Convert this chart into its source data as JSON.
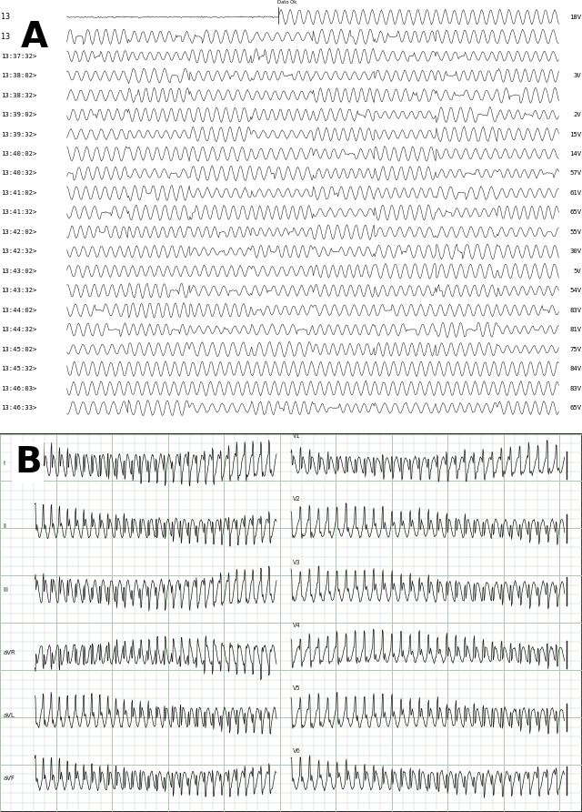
{
  "panel_A": {
    "bg_color": "#ffffff",
    "label": "A",
    "label_fontsize": 28,
    "rows": [
      {
        "time": "13",
        "suffix": "",
        "value": "18V",
        "type": "flat_then_vt"
      },
      {
        "time": "13",
        "suffix": "",
        "value": "",
        "type": "vt_mixed"
      },
      {
        "time": "13:37:32",
        "suffix": ">",
        "value": "",
        "type": "vt_mixed"
      },
      {
        "time": "13:38:02",
        "suffix": ">",
        "value": "3V",
        "type": "vt_mixed"
      },
      {
        "time": "13:38:32",
        "suffix": ">",
        "value": "",
        "type": "vt_mixed"
      },
      {
        "time": "13:39:02",
        "suffix": ">",
        "value": "2V",
        "type": "vt_mixed"
      },
      {
        "time": "13:39:32",
        "suffix": ">",
        "value": "15V",
        "type": "vt_mixed"
      },
      {
        "time": "13:40:02",
        "suffix": ">",
        "value": "14V",
        "type": "vt_mixed"
      },
      {
        "time": "13:40:32",
        "suffix": ">",
        "value": "57V",
        "type": "vt_mixed"
      },
      {
        "time": "13:41:02",
        "suffix": ">",
        "value": "61V",
        "type": "vt_mixed"
      },
      {
        "time": "13:41:32",
        "suffix": ">",
        "value": "65V",
        "type": "vt_mixed"
      },
      {
        "time": "13:42:02",
        "suffix": ">",
        "value": "55V",
        "type": "vt_mixed"
      },
      {
        "time": "13:42:32",
        "suffix": ">",
        "value": "30V",
        "type": "vt_mixed"
      },
      {
        "time": "13:43:02",
        "suffix": ">",
        "value": "5V",
        "type": "vt_mixed"
      },
      {
        "time": "13:43:32",
        "suffix": ">",
        "value": "54V",
        "type": "vt_mixed"
      },
      {
        "time": "13:44:02",
        "suffix": ">",
        "value": "83V",
        "type": "vt_mixed"
      },
      {
        "time": "13:44:32",
        "suffix": ">",
        "value": "81V",
        "type": "vt_mixed"
      },
      {
        "time": "13:45:02",
        "suffix": ">",
        "value": "75V",
        "type": "vt_mixed"
      },
      {
        "time": "13:45:32",
        "suffix": ">",
        "value": "84V",
        "type": "vt_full"
      },
      {
        "time": "13:46:03",
        "suffix": ">",
        "value": "83V",
        "type": "vt_full"
      },
      {
        "time": "13:46:33",
        "suffix": ">",
        "value": "65V",
        "type": "vt_mixed"
      }
    ]
  },
  "panel_B": {
    "bg_color": "#d8e8d8",
    "grid_color": "#aec8ae",
    "label": "B",
    "label_fontsize": 28,
    "lead_labels_left": [
      "I",
      "II",
      "III",
      "aVR",
      "aVL",
      "aVF"
    ],
    "lead_labels_right": [
      "V1",
      "V2",
      "V3",
      "V4",
      "V5",
      "V6"
    ]
  }
}
